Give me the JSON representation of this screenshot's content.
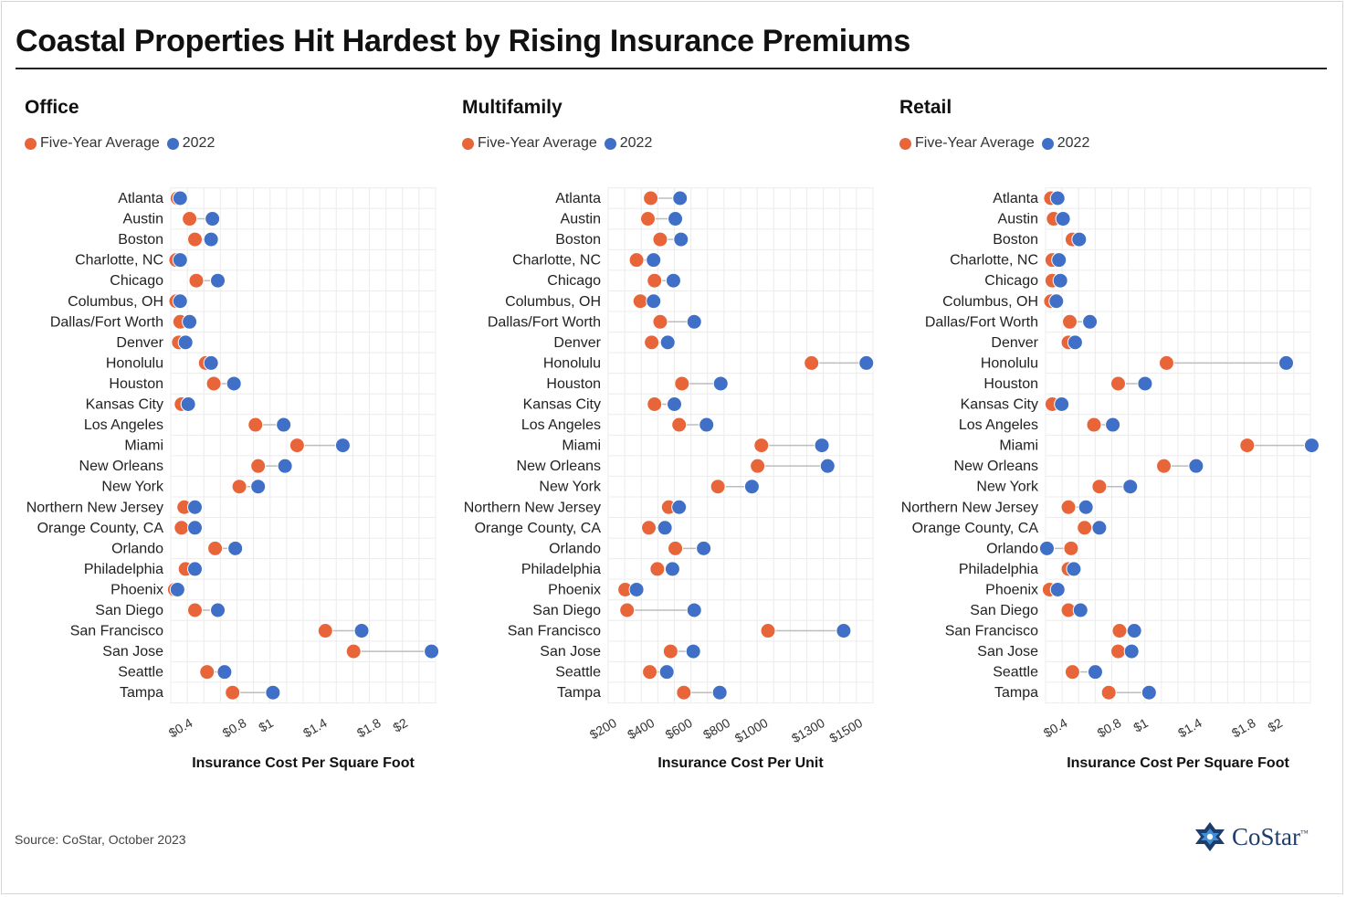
{
  "title": "Coastal Properties Hit Hardest by Rising Insurance Premiums",
  "source": "Source: CoStar, October 2023",
  "logo": {
    "name": "CoStar",
    "tm": "™"
  },
  "colors": {
    "five_year": "#e8653a",
    "y2022": "#3f6fc6",
    "connector": "#bdbdbd",
    "grid": "#ececec"
  },
  "legend": {
    "five_year": "Five-Year Average",
    "y2022": "2022"
  },
  "chart_data": [
    {
      "type": "dumbbell",
      "title": "Office",
      "xlabel": "Insurance Cost Per Square Foot",
      "xlim": [
        0.23,
        2.2
      ],
      "ticks": [
        0.4,
        0.8,
        1,
        1.4,
        1.8,
        2
      ],
      "tick_labels": [
        "$0.4",
        "$0.8",
        "$1",
        "$1.4",
        "$1.8",
        "$2"
      ],
      "series": [
        {
          "name": "Five-Year Average",
          "color": "#e8653a"
        },
        {
          "name": "2022",
          "color": "#3f6fc6"
        }
      ],
      "categories": [
        "Atlanta",
        "Austin",
        "Boston",
        "Charlotte, NC",
        "Chicago",
        "Columbus, OH",
        "Dallas/Fort Worth",
        "Denver",
        "Honolulu",
        "Houston",
        "Kansas City",
        "Los Angeles",
        "Miami",
        "New Orleans",
        "New York",
        "Northern New Jersey",
        "Orange County, CA",
        "Orlando",
        "Philadelphia",
        "Phoenix",
        "San Diego",
        "San Francisco",
        "San Jose",
        "Seattle",
        "Tampa"
      ],
      "five_year": [
        0.28,
        0.37,
        0.41,
        0.27,
        0.42,
        0.27,
        0.3,
        0.29,
        0.49,
        0.55,
        0.31,
        0.86,
        1.17,
        0.88,
        0.74,
        0.33,
        0.31,
        0.56,
        0.34,
        0.26,
        0.41,
        1.38,
        1.59,
        0.5,
        0.69
      ],
      "y2022": [
        0.3,
        0.54,
        0.53,
        0.3,
        0.58,
        0.3,
        0.37,
        0.34,
        0.53,
        0.7,
        0.36,
        1.07,
        1.51,
        1.08,
        0.88,
        0.41,
        0.41,
        0.71,
        0.41,
        0.28,
        0.58,
        1.65,
        2.17,
        0.63,
        0.99
      ]
    },
    {
      "type": "dumbbell",
      "title": "Multifamily",
      "xlabel": "Insurance Cost Per Unit",
      "xlim": [
        150,
        1550
      ],
      "ticks": [
        200,
        400,
        600,
        800,
        1000,
        1300,
        1500
      ],
      "tick_labels": [
        "$200",
        "$400",
        "$600",
        "$800",
        "$1000",
        "$1300",
        "$1500"
      ],
      "series": [
        {
          "name": "Five-Year Average",
          "color": "#e8653a"
        },
        {
          "name": "2022",
          "color": "#3f6fc6"
        }
      ],
      "categories": [
        "Atlanta",
        "Austin",
        "Boston",
        "Charlotte, NC",
        "Chicago",
        "Columbus, OH",
        "Dallas/Fort Worth",
        "Denver",
        "Honolulu",
        "Houston",
        "Kansas City",
        "Los Angeles",
        "Miami",
        "New Orleans",
        "New York",
        "Northern New Jersey",
        "Orange County, CA",
        "Orlando",
        "Philadelphia",
        "Phoenix",
        "San Diego",
        "San Francisco",
        "San Jose",
        "Seattle",
        "Tampa"
      ],
      "five_year": [
        375,
        360,
        425,
        300,
        395,
        320,
        425,
        380,
        1225,
        540,
        395,
        525,
        960,
        940,
        730,
        470,
        365,
        505,
        410,
        240,
        250,
        995,
        480,
        370,
        550
      ],
      "y2022": [
        530,
        505,
        535,
        390,
        495,
        390,
        605,
        465,
        1515,
        745,
        500,
        670,
        1280,
        1310,
        910,
        525,
        450,
        655,
        490,
        300,
        605,
        1395,
        600,
        460,
        740
      ]
    },
    {
      "type": "dumbbell",
      "title": "Retail",
      "xlabel": "Insurance Cost Per Square Foot",
      "xlim": [
        0.23,
        2.2
      ],
      "ticks": [
        0.4,
        0.8,
        1,
        1.4,
        1.8,
        2
      ],
      "tick_labels": [
        "$0.4",
        "$0.8",
        "$1",
        "$1.4",
        "$1.8",
        "$2"
      ],
      "series": [
        {
          "name": "Five-Year Average",
          "color": "#e8653a"
        },
        {
          "name": "2022",
          "color": "#3f6fc6"
        }
      ],
      "categories": [
        "Atlanta",
        "Austin",
        "Boston",
        "Charlotte, NC",
        "Chicago",
        "Columbus, OH",
        "Dallas/Fort Worth",
        "Denver",
        "Honolulu",
        "Houston",
        "Kansas City",
        "Los Angeles",
        "Miami",
        "New Orleans",
        "New York",
        "Northern New Jersey",
        "Orange County, CA",
        "Orlando",
        "Philadelphia",
        "Phoenix",
        "San Diego",
        "San Francisco",
        "San Jose",
        "Seattle",
        "Tampa"
      ],
      "five_year": [
        0.27,
        0.29,
        0.43,
        0.28,
        0.28,
        0.27,
        0.41,
        0.4,
        1.13,
        0.77,
        0.28,
        0.59,
        1.73,
        1.11,
        0.63,
        0.4,
        0.52,
        0.42,
        0.4,
        0.26,
        0.4,
        0.78,
        0.77,
        0.43,
        0.7
      ],
      "y2022": [
        0.32,
        0.36,
        0.48,
        0.33,
        0.34,
        0.31,
        0.56,
        0.45,
        2.02,
        0.97,
        0.35,
        0.73,
        2.21,
        1.35,
        0.86,
        0.53,
        0.63,
        0.24,
        0.44,
        0.32,
        0.49,
        0.89,
        0.87,
        0.6,
        1.0
      ]
    }
  ]
}
